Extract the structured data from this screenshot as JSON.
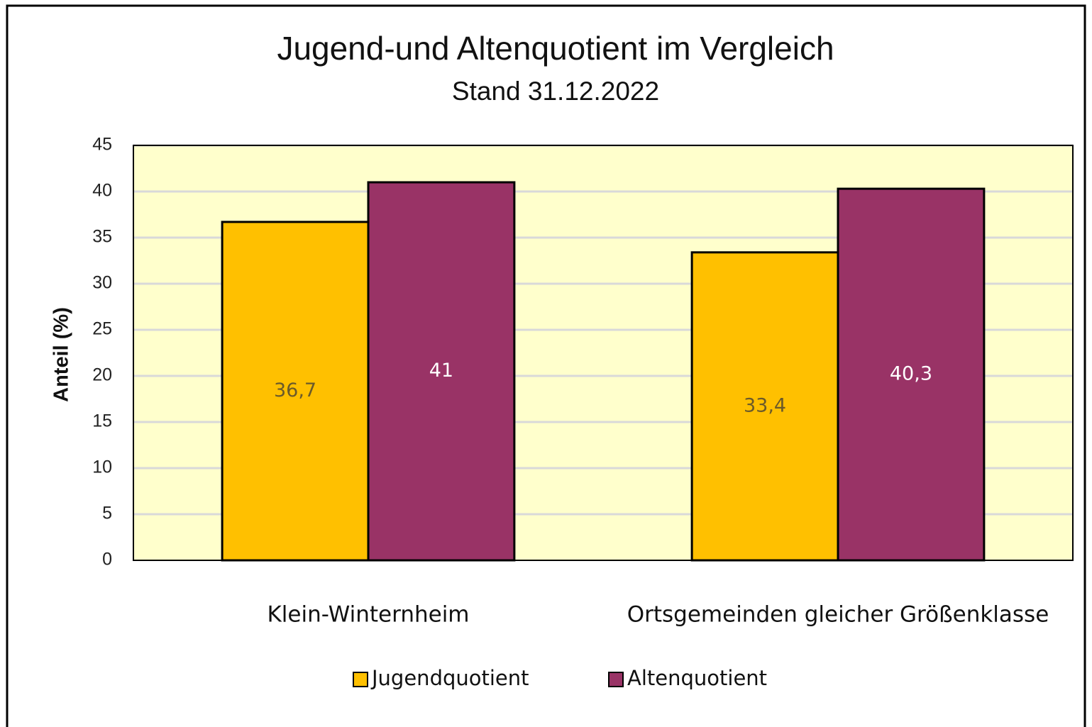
{
  "chart_data": {
    "type": "bar",
    "title": "Jugend-und Altenquotient im Vergleich",
    "subtitle": "Stand 31.12.2022",
    "y_label": "Anteil (%)",
    "categories": [
      "Klein-Winternheim",
      "Ortsgemeinden gleicher Größenklasse"
    ],
    "series": [
      {
        "name": "Jugendquotient",
        "color": "#FFC000",
        "values": [
          36.7,
          33.4
        ],
        "value_labels": [
          "36,7",
          "33,4"
        ]
      },
      {
        "name": "Altenquotient",
        "color": "#993366",
        "values": [
          41,
          40.3
        ],
        "value_labels": [
          "41",
          "40,3"
        ]
      }
    ],
    "ylim": [
      0,
      45
    ],
    "yticks": [
      0,
      5,
      10,
      15,
      20,
      25,
      30,
      35,
      40,
      45
    ],
    "grid": true,
    "legend": "bottom"
  }
}
